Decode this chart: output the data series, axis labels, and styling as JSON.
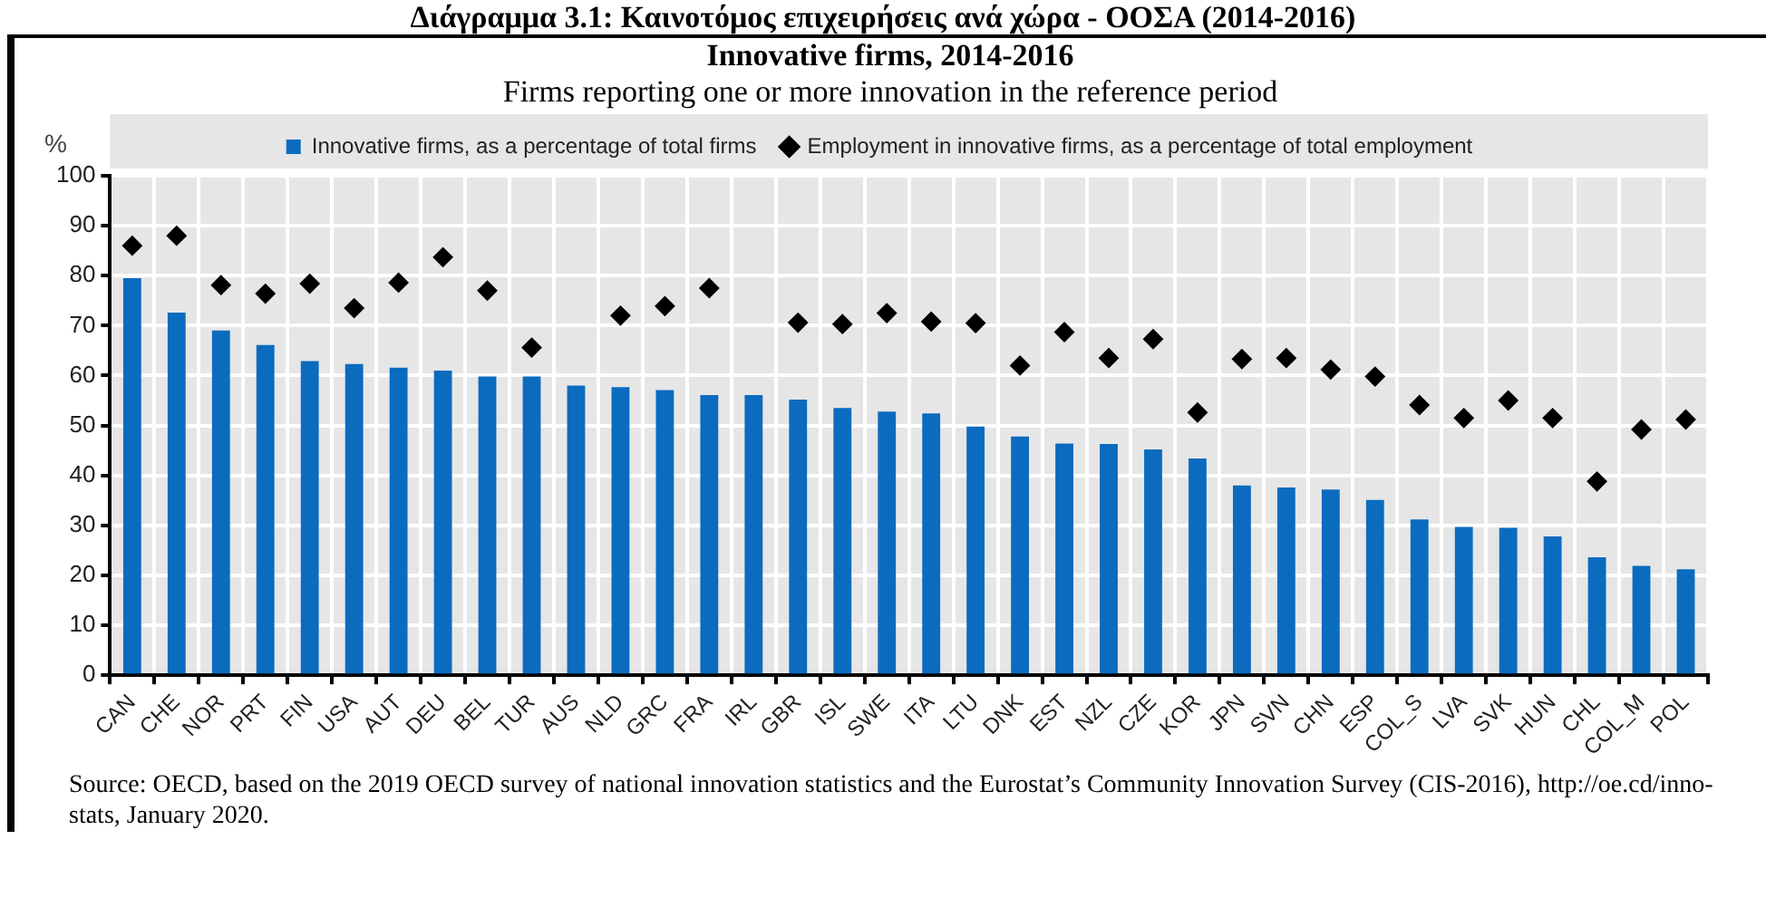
{
  "chart_data": {
    "type": "bar",
    "title": "Innovative firms, 2014-2016",
    "subtitle": "Firms reporting one or more innovation in the reference period",
    "ylabel": "%",
    "categories": [
      "CAN",
      "CHE",
      "NOR",
      "PRT",
      "FIN",
      "USA",
      "AUT",
      "DEU",
      "BEL",
      "TUR",
      "AUS",
      "NLD",
      "GRC",
      "FRA",
      "IRL",
      "GBR",
      "ISL",
      "SWE",
      "ITA",
      "LTU",
      "DNK",
      "EST",
      "NZL",
      "CZE",
      "KOR",
      "JPN",
      "SVN",
      "CHN",
      "ESP",
      "COL_S",
      "LVA",
      "SVK",
      "HUN",
      "CHL",
      "COL_M",
      "POL"
    ],
    "series": [
      {
        "name": "Innovative firms, as a percentage of total firms",
        "color": "#0b6bbf",
        "values": [
          79.5,
          72.6,
          69.0,
          66.1,
          62.9,
          62.3,
          61.6,
          61.0,
          59.8,
          59.8,
          58.0,
          57.7,
          57.1,
          56.1,
          56.1,
          55.2,
          53.5,
          52.8,
          52.4,
          49.8,
          47.8,
          46.4,
          46.3,
          45.2,
          43.4,
          38.0,
          37.6,
          37.2,
          35.1,
          31.2,
          29.7,
          29.5,
          27.8,
          23.6,
          21.9,
          21.2
        ]
      },
      {
        "name": "Employment in innovative firms, as a percentage of total employment",
        "type": "scatter",
        "color": "#000000",
        "values": [
          86.0,
          88.0,
          78.1,
          76.4,
          78.4,
          73.5,
          78.6,
          83.7,
          77.0,
          65.6,
          null,
          72.0,
          73.9,
          77.5,
          null,
          70.6,
          70.3,
          72.5,
          70.8,
          70.5,
          62.0,
          68.7,
          63.5,
          67.3,
          52.6,
          63.3,
          63.5,
          61.2,
          59.8,
          54.1,
          51.5,
          55.0,
          51.5,
          38.8,
          49.2,
          51.2
        ]
      }
    ],
    "marker": "diamond",
    "ylim": [
      0,
      100
    ],
    "yticks": [
      0,
      10,
      20,
      30,
      40,
      50,
      60,
      70,
      80,
      90,
      100
    ],
    "grid": true,
    "legend": "top",
    "annotations": [
      "Διάγραμμα 3.1: Καινοτόμος επιχειρήσεις ανά χώρα - ΟΟΣΑ (2014-2016)",
      "Source: OECD, based on the 2019 OECD survey of national innovation statistics and the Eurostat’s Community Innovation Survey (CIS-2016), http://oe.cd/inno-stats, January 2020."
    ]
  }
}
